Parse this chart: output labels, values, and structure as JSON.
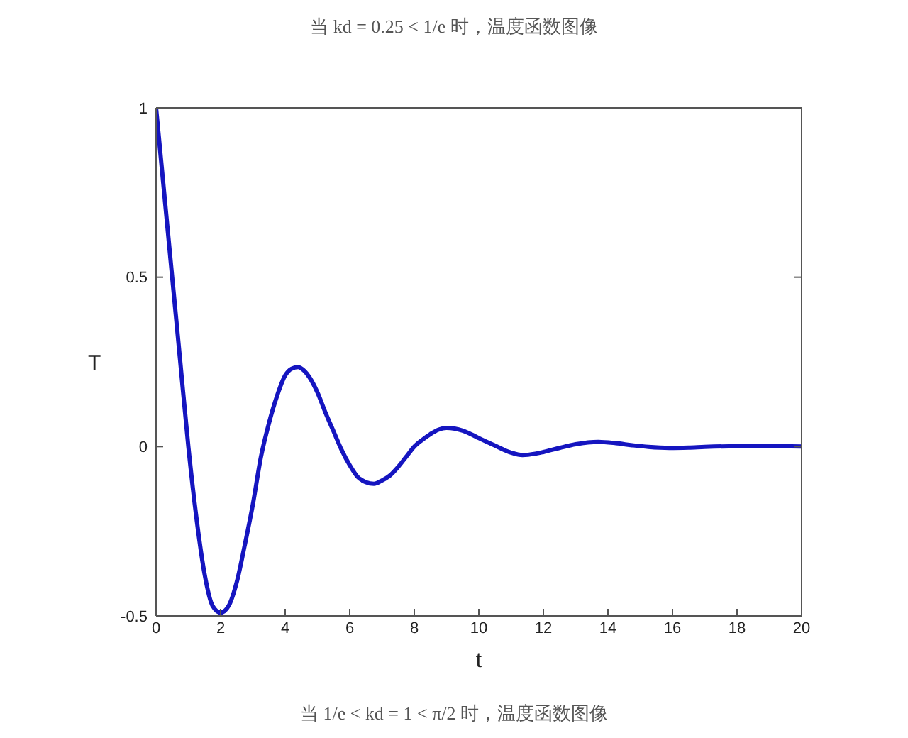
{
  "chart_data": {
    "type": "line",
    "title": "当 kd = 0.25 < 1/e 时，温度函数图像",
    "xlabel": "t",
    "ylabel": "T",
    "annotations": [
      "当 1/e < kd = 1 < π/2 时，温度函数图像"
    ],
    "x": [
      0,
      0.25,
      0.5,
      0.75,
      1,
      1.25,
      1.5,
      1.75,
      2,
      2.25,
      2.5,
      2.75,
      3,
      3.25,
      3.5,
      3.75,
      4,
      4.2,
      4.4,
      4.6,
      4.75,
      5,
      5.25,
      5.5,
      5.75,
      6,
      6.25,
      6.5,
      6.75,
      7,
      7.25,
      7.5,
      7.75,
      8,
      8.25,
      8.5,
      8.75,
      9,
      9.25,
      9.5,
      9.75,
      10,
      10.5,
      11,
      11.35,
      11.75,
      12,
      12.5,
      13,
      13.7,
      14.25,
      14.75,
      15.25,
      15.9,
      16.5,
      17,
      18,
      19,
      20
    ],
    "series": [
      {
        "color": "#1515c0",
        "values": [
          1,
          0.75,
          0.5,
          0.25,
          0,
          -0.21,
          -0.375,
          -0.47,
          -0.49,
          -0.47,
          -0.4,
          -0.29,
          -0.17,
          -0.03,
          0.07,
          0.15,
          0.21,
          0.23,
          0.235,
          0.223,
          0.205,
          0.16,
          0.1,
          0.045,
          -0.01,
          -0.055,
          -0.09,
          -0.105,
          -0.11,
          -0.1,
          -0.085,
          -0.06,
          -0.03,
          0,
          0.02,
          0.037,
          0.05,
          0.055,
          0.053,
          0.047,
          0.037,
          0.025,
          0.003,
          -0.018,
          -0.025,
          -0.021,
          -0.016,
          -0.004,
          0.007,
          0.014,
          0.01,
          0.004,
          -0.001,
          -0.004,
          -0.003,
          -0.001,
          0.001,
          0.001,
          0
        ]
      }
    ],
    "xlim": [
      0,
      20
    ],
    "xticks": [
      0,
      2,
      4,
      6,
      8,
      10,
      12,
      14,
      16,
      18,
      20
    ],
    "ylim": [
      -0.5,
      1
    ],
    "yticks": [
      -0.5,
      0,
      0.5,
      1
    ]
  }
}
